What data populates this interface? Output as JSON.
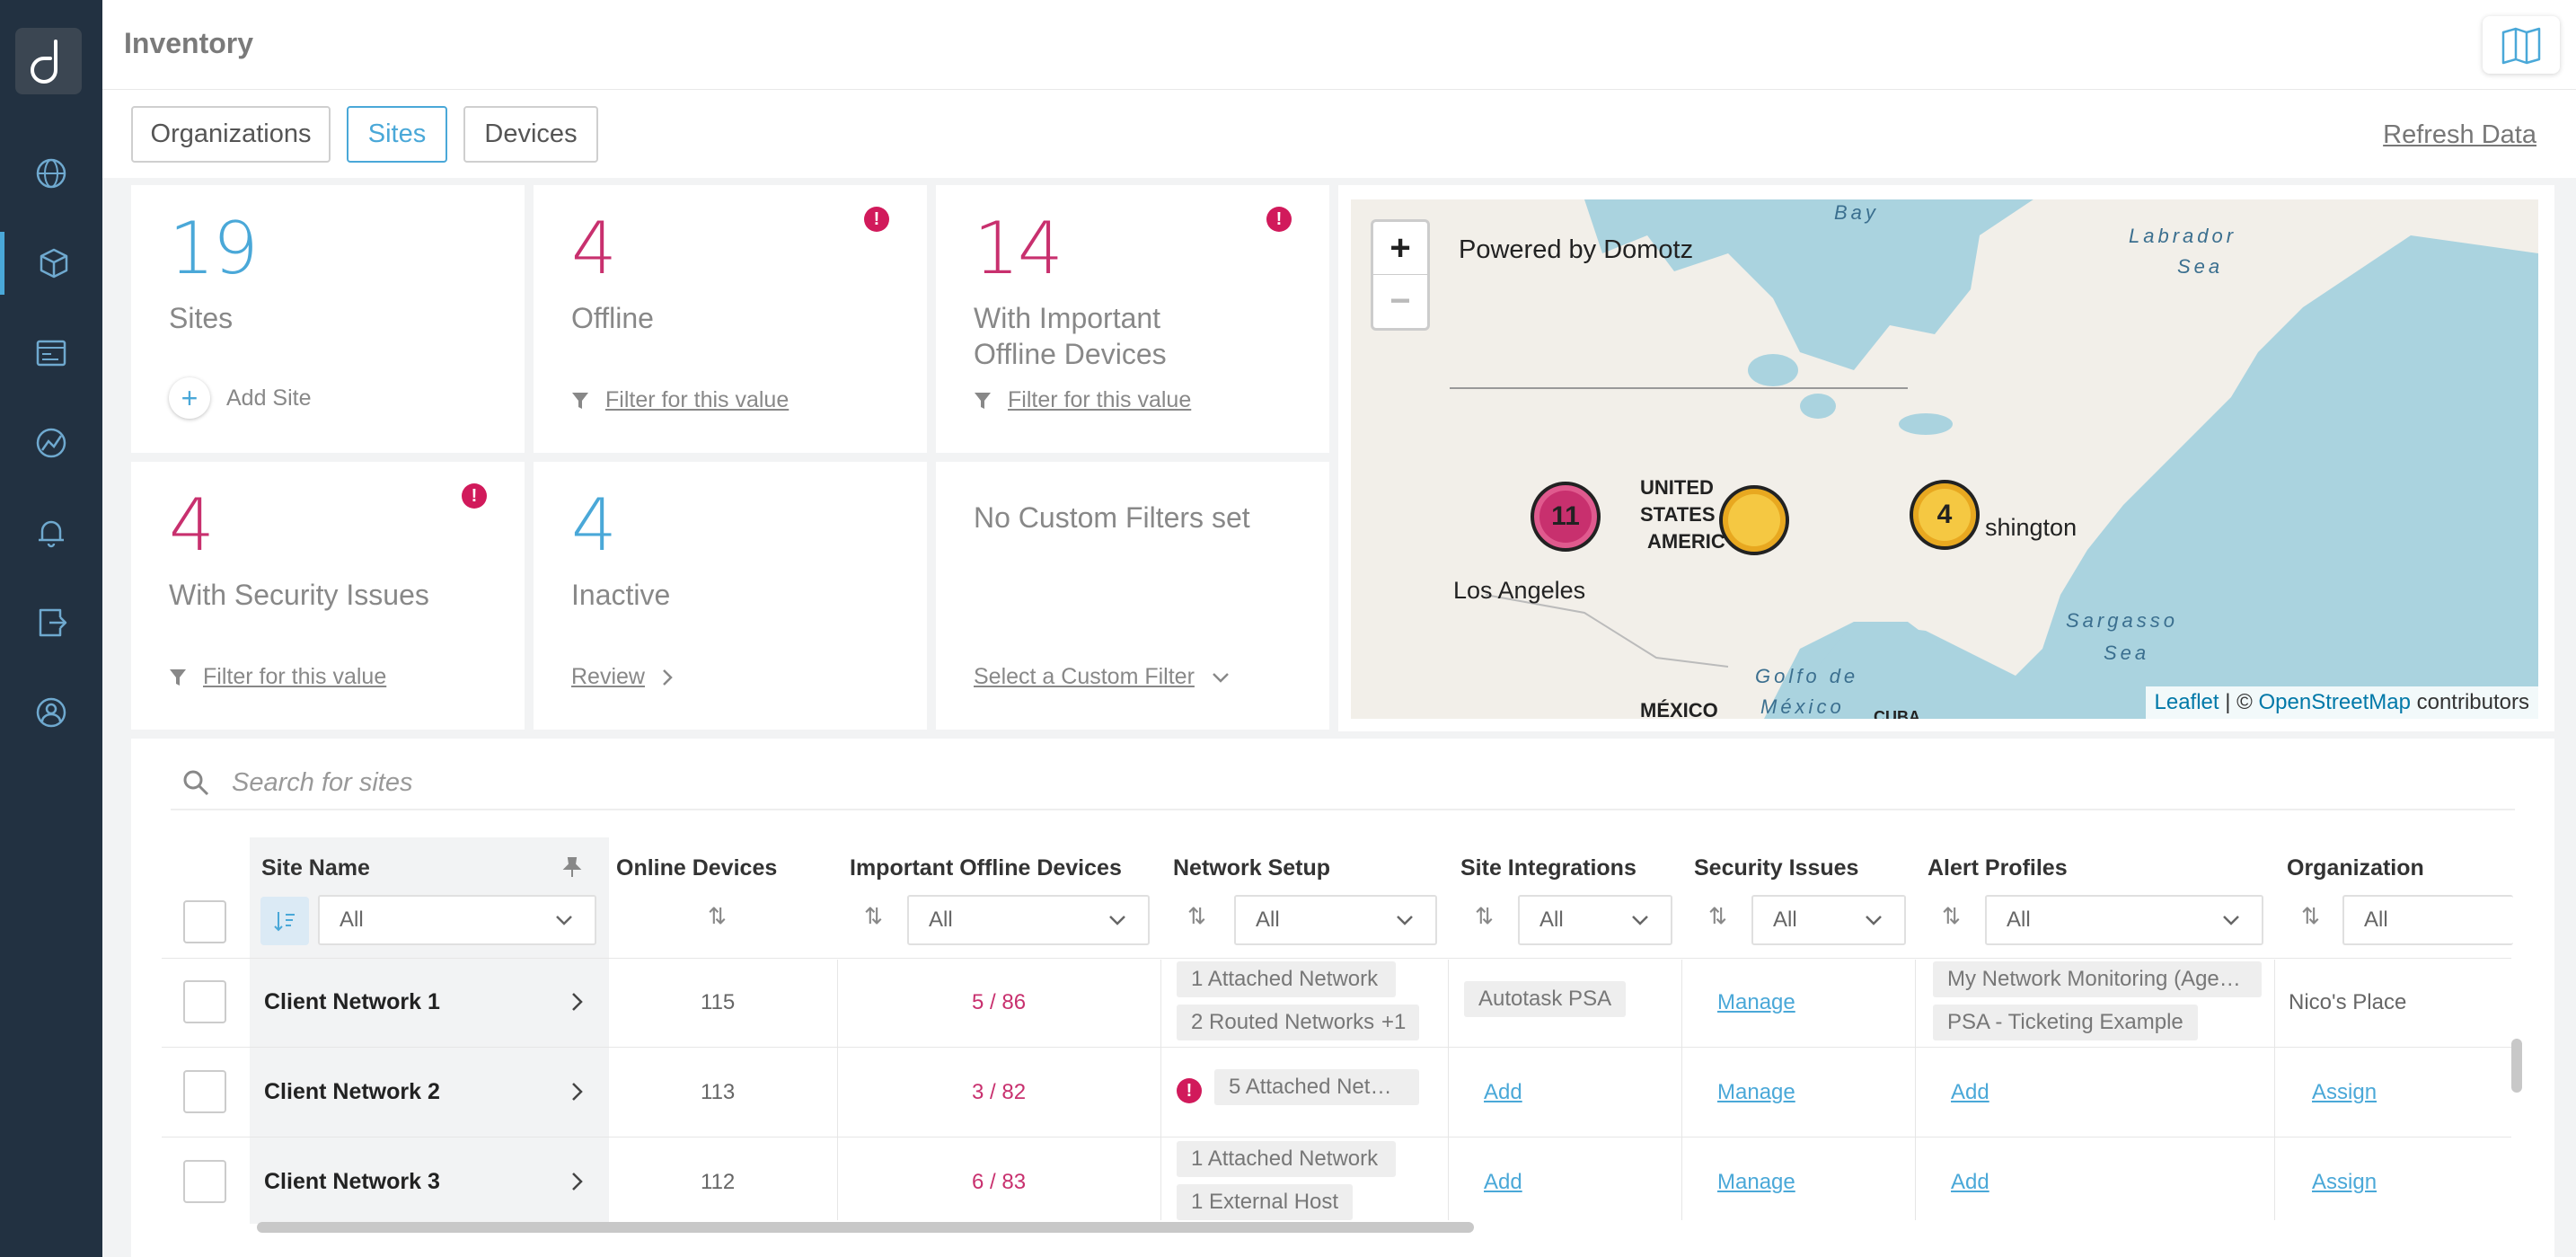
{
  "header": {
    "title": "Inventory"
  },
  "tabs": [
    {
      "label": "Organizations",
      "active": false
    },
    {
      "label": "Sites",
      "active": true
    },
    {
      "label": "Devices",
      "active": false
    }
  ],
  "refresh_label": "Refresh Data",
  "sidebar": {
    "items": [
      {
        "icon": "globe-icon"
      },
      {
        "icon": "cube-icon",
        "active": true
      },
      {
        "icon": "dashboard-icon"
      },
      {
        "icon": "network-icon"
      },
      {
        "icon": "bell-icon"
      },
      {
        "icon": "export-icon"
      },
      {
        "icon": "user-icon"
      }
    ]
  },
  "cards": {
    "sites": {
      "value": "19",
      "label": "Sites",
      "action": "Add Site"
    },
    "offline": {
      "value": "4",
      "label": "Offline",
      "action": "Filter for this value"
    },
    "important_offline": {
      "value": "14",
      "label_line1": "With Important",
      "label_line2": "Offline Devices",
      "action": "Filter for this value"
    },
    "security": {
      "value": "4",
      "label": "With Security Issues",
      "action": "Filter for this value"
    },
    "inactive": {
      "value": "4",
      "label": "Inactive",
      "action": "Review"
    },
    "custom": {
      "label": "No Custom Filters set",
      "action": "Select a Custom Filter"
    },
    "alert_glyph": "!"
  },
  "map": {
    "powered_by": "Powered by Domotz",
    "zoom_in": "+",
    "zoom_out": "−",
    "labels": {
      "bay": "Bay",
      "labrador": "Labrador",
      "sea": "Sea",
      "united": "UNITED",
      "states": "STATES",
      "americ": "AMERIC",
      "washington": "shington",
      "los_angeles": "Los Angeles",
      "sargasso": "Sargasso",
      "golfo": "Golfo de",
      "mexico_gulf": "México",
      "mexico": "MÉXICO",
      "cuba": "CUBA"
    },
    "clusters": [
      {
        "count": "11",
        "color": "#c8306e"
      },
      {
        "count": "",
        "color": "#f5c842"
      },
      {
        "count": "4",
        "color": "#f5c842"
      }
    ],
    "attribution": {
      "leaflet": "Leaflet",
      "sep": " | © ",
      "osm": "OpenStreetMap",
      "rest": " contributors"
    }
  },
  "table": {
    "search_placeholder": "Search for sites",
    "columns": {
      "site_name": "Site Name",
      "online": "Online Devices",
      "important_offline": "Important Offline Devices",
      "network_setup": "Network Setup",
      "integrations": "Site Integrations",
      "security": "Security Issues",
      "alert_profiles": "Alert Profiles",
      "organization": "Organization"
    },
    "filter_all": "All",
    "rows": [
      {
        "name": "Client Network 1",
        "online": "115",
        "important_offline": "5 / 86",
        "network_tags": [
          "1 Attached Network",
          "2 Routed Networks",
          "+1"
        ],
        "integration": "Autotask PSA",
        "security": "Manage",
        "alert_tags": [
          "My Network Monitoring (Age…",
          "PSA - Ticketing Example"
        ],
        "organization": "Nico's Place"
      },
      {
        "name": "Client Network 2",
        "online": "113",
        "important_offline": "3 / 82",
        "network_tags": [
          "5 Attached Net…"
        ],
        "integration": "Add",
        "security": "Manage",
        "alert": "Add",
        "organization": "Assign"
      },
      {
        "name": "Client Network 3",
        "online": "112",
        "important_offline": "6 / 83",
        "network_tags": [
          "1 Attached Network",
          "1 External Host"
        ],
        "integration": "Add",
        "security": "Manage",
        "alert": "Add",
        "organization": "Assign"
      }
    ]
  }
}
